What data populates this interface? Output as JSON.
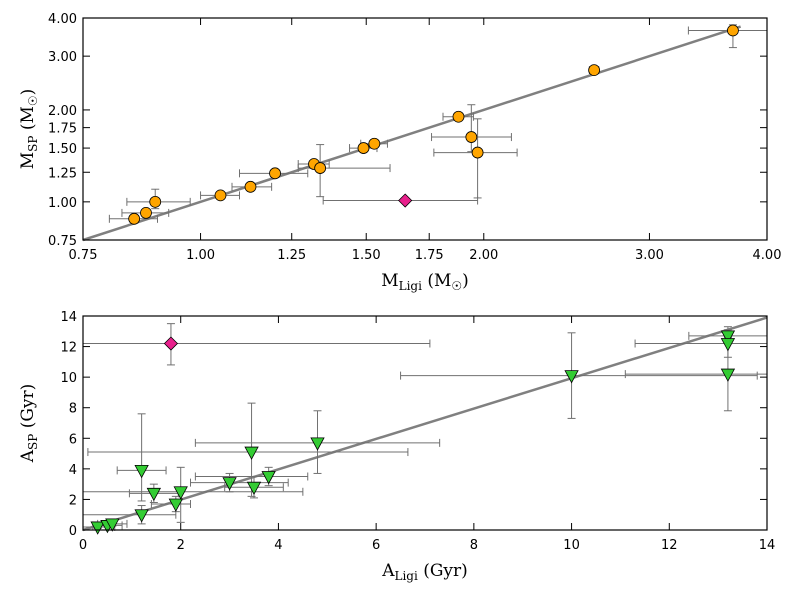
{
  "chart_data": [
    {
      "type": "scatter",
      "xscale": "log",
      "yscale": "log",
      "xlim": [
        0.75,
        4.0
      ],
      "ylim": [
        0.75,
        4.0
      ],
      "xticks": [
        0.75,
        1.0,
        1.25,
        1.5,
        1.75,
        2.0,
        3.0,
        4.0
      ],
      "xtick_labels": [
        "0.75",
        "1.00",
        "1.25",
        "1.50",
        "1.75",
        "2.00",
        "3.00",
        "4.00"
      ],
      "yticks": [
        0.75,
        1.0,
        1.25,
        1.5,
        1.75,
        2.0,
        3.0,
        4.0
      ],
      "ytick_labels": [
        "0.75",
        "1.00",
        "1.25",
        "1.50",
        "1.75",
        "2.00",
        "3.00",
        "4.00"
      ],
      "xlabel": {
        "main": "M",
        "sub": "Ligi",
        "unit": " (M",
        "sun": "☉",
        "close": ")"
      },
      "ylabel": {
        "main": "M",
        "sub": "SP",
        "unit": " (M",
        "sun": "☉",
        "close": ")"
      },
      "fit_line": {
        "from": [
          0.75,
          0.75
        ],
        "to": [
          3.75,
          3.75
        ]
      },
      "series": [
        {
          "name": "main",
          "marker": "circle",
          "color": "#FFA500",
          "points": [
            {
              "x": 0.85,
              "y": 0.88,
              "xerr": [
                0.05,
                0.05
              ],
              "yerr": [
                0.02,
                0.02
              ]
            },
            {
              "x": 0.875,
              "y": 0.92,
              "xerr": [
                0.05,
                0.05
              ],
              "yerr": [
                0.02,
                0.02
              ]
            },
            {
              "x": 0.895,
              "y": 1.0,
              "xerr": [
                0.06,
                0.08
              ],
              "yerr": [
                0.05,
                0.1
              ]
            },
            {
              "x": 1.05,
              "y": 1.05,
              "xerr": [
                0.05,
                0.05
              ],
              "yerr": [
                0.02,
                0.02
              ]
            },
            {
              "x": 1.13,
              "y": 1.12,
              "xerr": [
                0.05,
                0.06
              ],
              "yerr": [
                0.02,
                0.02
              ]
            },
            {
              "x": 1.2,
              "y": 1.24,
              "xerr": [
                0.1,
                0.1
              ],
              "yerr": [
                0.02,
                0.02
              ]
            },
            {
              "x": 1.32,
              "y": 1.33,
              "xerr": [
                0.05,
                0.05
              ],
              "yerr": [
                0.02,
                0.02
              ]
            },
            {
              "x": 1.34,
              "y": 1.29,
              "xerr": [
                0.07,
                0.25
              ],
              "yerr": [
                0.25,
                0.25
              ]
            },
            {
              "x": 1.49,
              "y": 1.5,
              "xerr": [
                0.05,
                0.05
              ],
              "yerr": [
                0.02,
                0.02
              ]
            },
            {
              "x": 1.53,
              "y": 1.55,
              "xerr": [
                0.05,
                0.05
              ],
              "yerr": [
                0.02,
                0.02
              ]
            },
            {
              "x": 1.88,
              "y": 1.9,
              "xerr": [
                0.07,
                0.07
              ],
              "yerr": [
                0.02,
                0.02
              ]
            },
            {
              "x": 1.94,
              "y": 1.63,
              "xerr": [
                0.18,
                0.2
              ],
              "yerr": [
                0.17,
                0.45
              ]
            },
            {
              "x": 1.97,
              "y": 1.45,
              "xerr": [
                0.2,
                0.2
              ],
              "yerr": [
                0.42,
                0.42
              ]
            },
            {
              "x": 2.62,
              "y": 2.7,
              "xerr": [
                0.03,
                0.03
              ],
              "yerr": [
                0.02,
                0.02
              ]
            },
            {
              "x": 3.68,
              "y": 3.64,
              "xerr": [
                0.38,
                0.32
              ],
              "yerr": [
                0.44,
                0.16
              ]
            }
          ]
        },
        {
          "name": "outlier",
          "marker": "diamond",
          "color": "#E8208C",
          "points": [
            {
              "x": 1.65,
              "y": 1.01,
              "xerr": [
                0.3,
                0.32
              ],
              "yerr": [
                0.0,
                0.0
              ]
            }
          ]
        }
      ]
    },
    {
      "type": "scatter",
      "xscale": "linear",
      "yscale": "linear",
      "xlim": [
        0,
        14
      ],
      "ylim": [
        0,
        14
      ],
      "xticks": [
        0,
        2,
        4,
        6,
        8,
        10,
        12,
        14
      ],
      "xtick_labels": [
        "0",
        "2",
        "4",
        "6",
        "8",
        "10",
        "12",
        "14"
      ],
      "yticks": [
        0,
        2,
        4,
        6,
        8,
        10,
        12,
        14
      ],
      "ytick_labels": [
        "0",
        "2",
        "4",
        "6",
        "8",
        "10",
        "12",
        "14"
      ],
      "xlabel": {
        "main": "A",
        "sub": "Ligi",
        "unit": " (Gyr)"
      },
      "ylabel": {
        "main": "A",
        "sub": "SP",
        "unit": " (Gyr)"
      },
      "fit_line": {
        "from": [
          0,
          0
        ],
        "to": [
          14,
          13.9
        ]
      },
      "series": [
        {
          "name": "main",
          "marker": "triangle-down",
          "color": "#33CC33",
          "points": [
            {
              "x": 0.3,
              "y": 0.2,
              "xerr": [
                0.3,
                0.35
              ],
              "yerr": [
                0.1,
                0.1
              ]
            },
            {
              "x": 0.5,
              "y": 0.3,
              "xerr": [
                0.3,
                0.3
              ],
              "yerr": [
                0.1,
                0.1
              ]
            },
            {
              "x": 0.6,
              "y": 0.4,
              "xerr": [
                0.3,
                0.3
              ],
              "yerr": [
                0.15,
                0.15
              ]
            },
            {
              "x": 1.2,
              "y": 3.9,
              "xerr": [
                0.5,
                0.5
              ],
              "yerr": [
                2.0,
                3.7
              ]
            },
            {
              "x": 1.2,
              "y": 1.0,
              "xerr": [
                1.2,
                0.7
              ],
              "yerr": [
                0.6,
                0.6
              ]
            },
            {
              "x": 1.45,
              "y": 2.4,
              "xerr": [
                0.5,
                0.5
              ],
              "yerr": [
                0.6,
                0.6
              ]
            },
            {
              "x": 1.9,
              "y": 1.7,
              "xerr": [
                0.5,
                0.3
              ],
              "yerr": [
                0.5,
                0.5
              ]
            },
            {
              "x": 2.0,
              "y": 2.5,
              "xerr": [
                2.0,
                2.5
              ],
              "yerr": [
                2.0,
                1.6
              ]
            },
            {
              "x": 3.0,
              "y": 3.1,
              "xerr": [
                0.8,
                1.2
              ],
              "yerr": [
                0.6,
                0.6
              ]
            },
            {
              "x": 3.5,
              "y": 2.8,
              "xerr": [
                0.6,
                0.6
              ],
              "yerr": [
                0.7,
                0.7
              ]
            },
            {
              "x": 3.45,
              "y": 5.1,
              "xerr": [
                3.35,
                3.2
              ],
              "yerr": [
                2.9,
                3.2
              ]
            },
            {
              "x": 3.8,
              "y": 3.5,
              "xerr": [
                1.5,
                0.8
              ],
              "yerr": [
                0.6,
                0.6
              ]
            },
            {
              "x": 4.8,
              "y": 5.7,
              "xerr": [
                2.5,
                2.5
              ],
              "yerr": [
                2.0,
                2.1
              ]
            },
            {
              "x": 10.0,
              "y": 10.1,
              "xerr": [
                3.5,
                3.8
              ],
              "yerr": [
                2.8,
                2.8
              ]
            },
            {
              "x": 13.2,
              "y": 12.7,
              "xerr": [
                0.8,
                0.8
              ],
              "yerr": [
                0.5,
                0.6
              ]
            },
            {
              "x": 13.2,
              "y": 12.2,
              "xerr": [
                1.9,
                0.8
              ],
              "yerr": [
                0.9,
                0.9
              ]
            },
            {
              "x": 13.2,
              "y": 10.2,
              "xerr": [
                2.1,
                0.8
              ],
              "yerr": [
                2.4,
                2.4
              ]
            }
          ]
        },
        {
          "name": "outlier",
          "marker": "diamond",
          "color": "#E8208C",
          "points": [
            {
              "x": 1.8,
              "y": 12.2,
              "xerr": [
                1.8,
                5.3
              ],
              "yerr": [
                1.4,
                1.3
              ]
            }
          ]
        }
      ]
    }
  ]
}
